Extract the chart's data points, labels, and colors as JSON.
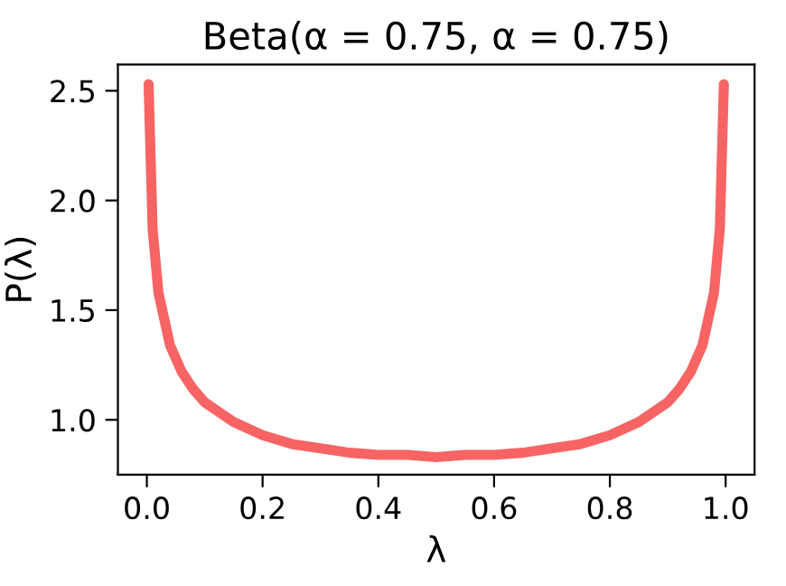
{
  "chart_data": {
    "type": "line",
    "title": "Beta(α = 0.75, α = 0.75)",
    "xlabel": "λ",
    "ylabel": "P(λ)",
    "x": [
      0.003,
      0.01,
      0.02,
      0.04,
      0.06,
      0.08,
      0.1,
      0.15,
      0.2,
      0.25,
      0.3,
      0.35,
      0.4,
      0.45,
      0.5,
      0.55,
      0.6,
      0.65,
      0.7,
      0.75,
      0.8,
      0.85,
      0.9,
      0.92,
      0.94,
      0.96,
      0.98,
      0.99,
      0.997
    ],
    "series": [
      {
        "color": "#f86464",
        "values": [
          2.53,
          1.87,
          1.58,
          1.34,
          1.22,
          1.14,
          1.08,
          0.99,
          0.93,
          0.89,
          0.87,
          0.85,
          0.84,
          0.84,
          0.83,
          0.84,
          0.84,
          0.85,
          0.87,
          0.89,
          0.93,
          0.99,
          1.08,
          1.14,
          1.22,
          1.34,
          1.58,
          1.87,
          2.53
        ]
      }
    ],
    "xlim": [
      -0.05,
      1.05
    ],
    "ylim": [
      0.75,
      2.62
    ],
    "xticks": [
      {
        "value": 0,
        "label": "0.0"
      },
      0.2,
      0.4,
      0.6,
      0.8,
      {
        "value": 1,
        "label": "1.0"
      }
    ],
    "yticks": [
      {
        "value": 1,
        "label": "1.0"
      },
      1.5,
      {
        "value": 2,
        "label": "2.0"
      },
      2.5
    ],
    "grid": false,
    "legend": false,
    "marker": "none",
    "line_style": "solid"
  }
}
